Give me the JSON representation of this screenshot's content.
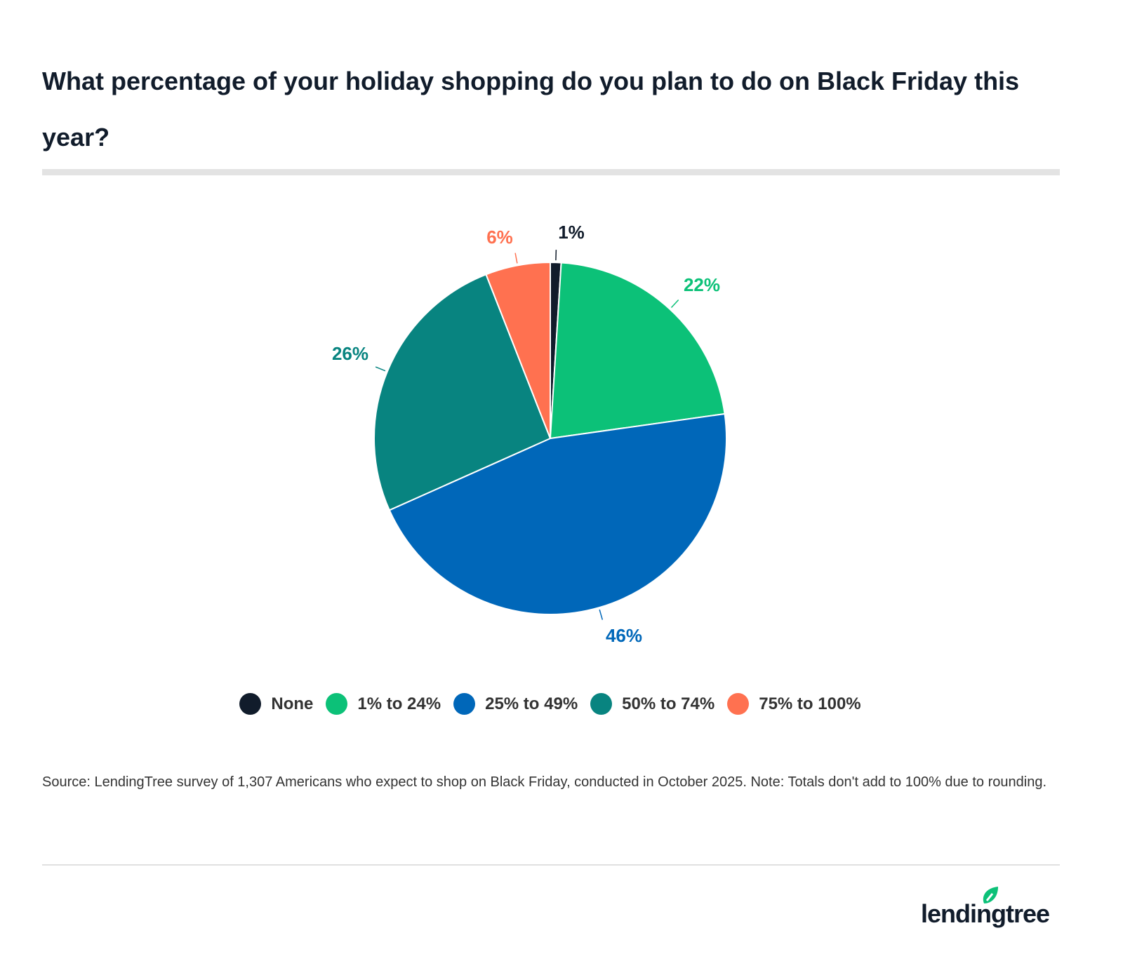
{
  "title": "What percentage of your holiday shopping do you plan to do on Black Friday this year?",
  "chart_data": {
    "type": "pie",
    "categories": [
      "None",
      "1% to 24%",
      "25% to 49%",
      "50% to 74%",
      "75% to 100%"
    ],
    "values": [
      1,
      22,
      46,
      26,
      6
    ],
    "labels": [
      "1%",
      "22%",
      "46%",
      "26%",
      "6%"
    ],
    "colors": [
      "#111c2b",
      "#0cc178",
      "#0067b9",
      "#088480",
      "#ff7150"
    ],
    "start_angle": "top",
    "direction": "clockwise",
    "legend_position": "bottom"
  },
  "source": "Source: LendingTree survey of 1,307 Americans who expect to shop on Black Friday, conducted in October 2025. Note: Totals don't add to 100% due to rounding.",
  "logo": {
    "text": "lendingtree",
    "brand_color": "#0cc178"
  }
}
